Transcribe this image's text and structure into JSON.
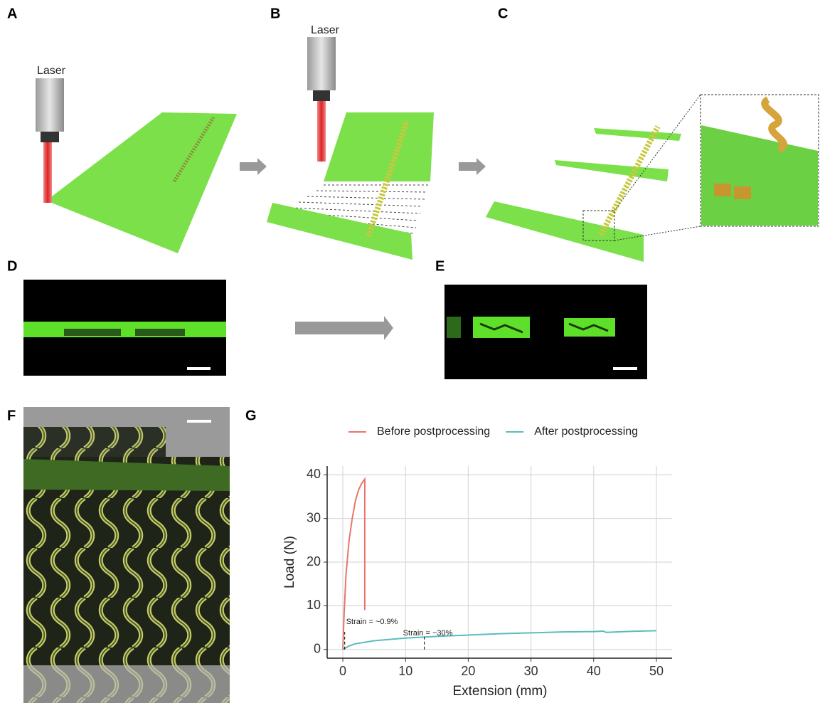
{
  "panel_labels": [
    "A",
    "B",
    "C",
    "D",
    "E",
    "F",
    "G"
  ],
  "laser_labels": [
    "Laser",
    "Laser"
  ],
  "chart_data": {
    "type": "line",
    "xlabel": "Extension (mm)",
    "ylabel": "Load (N)",
    "xlim": [
      -2.5,
      52.5
    ],
    "ylim": [
      -2,
      42
    ],
    "xticks": [
      0,
      10,
      20,
      30,
      40,
      50
    ],
    "yticks": [
      0,
      10,
      20,
      30,
      40
    ],
    "grid": true,
    "legend": "top",
    "series": [
      {
        "name": "Before postprocessing",
        "color": "#e8756c",
        "x": [
          0,
          0.2,
          0.5,
          1,
          1.5,
          2,
          2.5,
          3,
          3.5,
          3.5
        ],
        "values": [
          0,
          8,
          17,
          25,
          30,
          34,
          36.5,
          38,
          39,
          9
        ]
      },
      {
        "name": "After postprocessing",
        "color": "#5bbcbd",
        "x": [
          0,
          1,
          2,
          5,
          10,
          15,
          20,
          25,
          30,
          35,
          40,
          41.5,
          42,
          45,
          50
        ],
        "values": [
          0,
          0.8,
          1.3,
          2,
          2.6,
          3,
          3.3,
          3.6,
          3.8,
          4,
          4.1,
          4.2,
          3.9,
          4.1,
          4.3
        ]
      }
    ],
    "annotations": [
      {
        "text": "Strain = ~0.9%",
        "x": 0.3,
        "y": 4
      },
      {
        "text": "Strain = ~30%",
        "x": 13,
        "y": 3
      }
    ]
  }
}
